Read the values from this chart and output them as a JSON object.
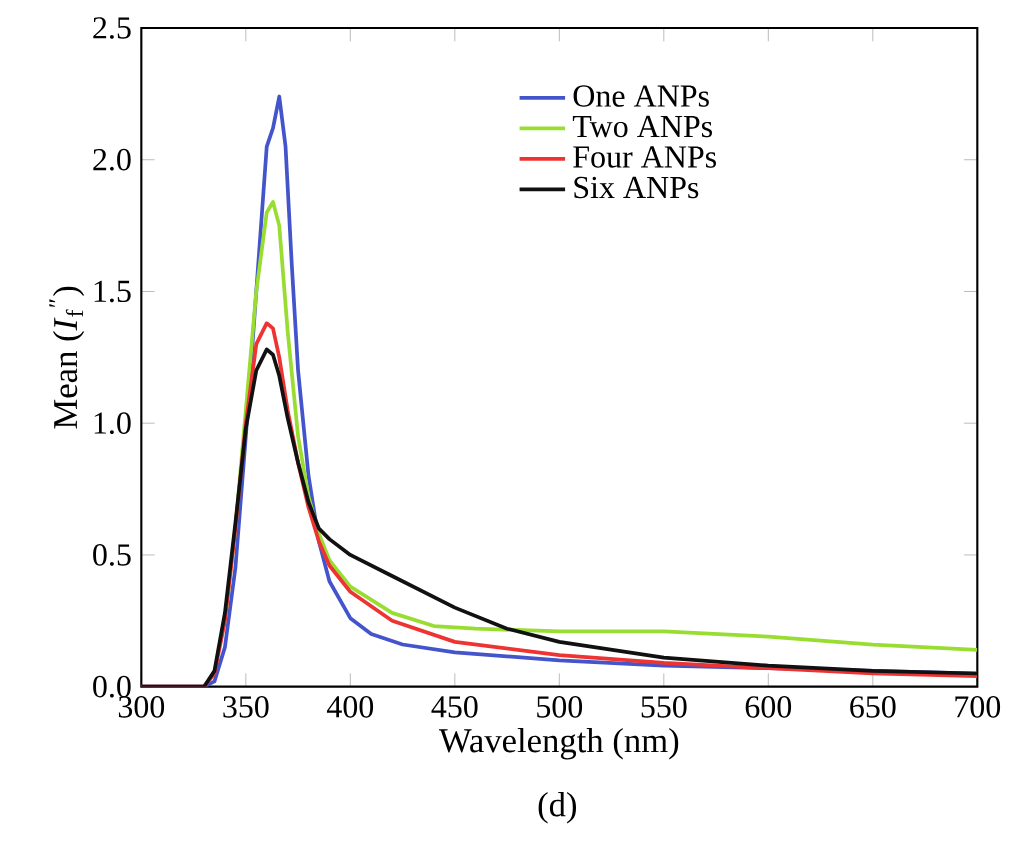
{
  "chart_data": {
    "type": "line",
    "xlabel": "Wavelength (nm)",
    "ylabel": "Mean (*I*$_{f}$$^{″}$)",
    "annotations": [
      "(d)"
    ],
    "xlim": [
      300,
      700
    ],
    "ylim": [
      0,
      2.5
    ],
    "xticks": [
      300,
      350,
      400,
      450,
      500,
      550,
      600,
      650,
      700
    ],
    "yticks": [
      {
        "value": 0,
        "label": "0.0"
      },
      {
        "value": 0.5,
        "label": "0.5"
      },
      {
        "value": 1,
        "label": "1.0"
      },
      {
        "value": 1.5,
        "label": "1.5"
      },
      {
        "value": 2,
        "label": "2.0"
      },
      {
        "value": 2.5,
        "label": "2.5"
      }
    ],
    "grid": false,
    "legend": "top right",
    "marker": "none",
    "line_style": "solid",
    "series": [
      {
        "name": "One ANPs",
        "color": "#4455cc",
        "x": [
          300,
          330,
          335,
          340,
          345,
          350,
          355,
          360,
          363,
          366,
          369,
          372,
          375,
          380,
          385,
          390,
          400,
          410,
          425,
          450,
          500,
          550,
          600,
          650,
          700
        ],
        "values": [
          0,
          0,
          0.02,
          0.15,
          0.45,
          0.95,
          1.5,
          2.05,
          2.12,
          2.24,
          2.05,
          1.6,
          1.2,
          0.8,
          0.55,
          0.4,
          0.26,
          0.2,
          0.16,
          0.13,
          0.1,
          0.08,
          0.07,
          0.06,
          0.05
        ]
      },
      {
        "name": "Two ANPs",
        "color": "#99dd33",
        "x": [
          340,
          345,
          350,
          355,
          360,
          363,
          366,
          370,
          375,
          380,
          385,
          390,
          400,
          420,
          440,
          460,
          500,
          550,
          600,
          650,
          700
        ],
        "values": [
          0.25,
          0.6,
          1.05,
          1.5,
          1.8,
          1.84,
          1.75,
          1.35,
          0.95,
          0.72,
          0.58,
          0.48,
          0.38,
          0.28,
          0.23,
          0.22,
          0.21,
          0.21,
          0.19,
          0.16,
          0.14
        ]
      },
      {
        "name": "Four ANPs",
        "color": "#ee3333",
        "x": [
          300,
          330,
          335,
          340,
          345,
          350,
          355,
          360,
          363,
          366,
          370,
          375,
          380,
          385,
          390,
          400,
          420,
          450,
          500,
          550,
          600,
          650,
          700
        ],
        "values": [
          0,
          0,
          0.05,
          0.25,
          0.6,
          1.0,
          1.3,
          1.38,
          1.36,
          1.25,
          1.05,
          0.85,
          0.68,
          0.55,
          0.46,
          0.36,
          0.25,
          0.17,
          0.12,
          0.09,
          0.07,
          0.05,
          0.04
        ]
      },
      {
        "name": "Six ANPs",
        "color": "#111111",
        "x": [
          300,
          330,
          335,
          340,
          345,
          350,
          355,
          360,
          363,
          366,
          370,
          375,
          380,
          385,
          390,
          400,
          420,
          450,
          475,
          500,
          550,
          600,
          650,
          700
        ],
        "values": [
          0,
          0,
          0.06,
          0.28,
          0.62,
          0.98,
          1.2,
          1.28,
          1.26,
          1.18,
          1.02,
          0.85,
          0.7,
          0.6,
          0.56,
          0.5,
          0.42,
          0.3,
          0.22,
          0.17,
          0.11,
          0.08,
          0.06,
          0.05
        ]
      }
    ]
  }
}
